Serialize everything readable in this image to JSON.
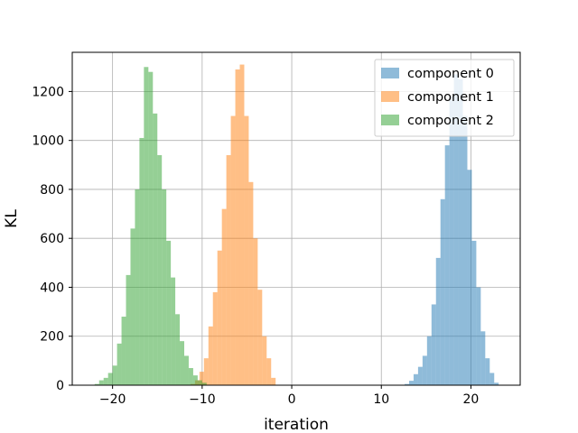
{
  "chart_data": {
    "type": "bar",
    "title": "",
    "xlabel": "iteration",
    "ylabel": "KL",
    "xlim": [
      -24.5,
      25.5
    ],
    "ylim": [
      0,
      1360
    ],
    "xticks": [
      -20,
      -10,
      0,
      10,
      20
    ],
    "xtick_labels": [
      "−20",
      "−10",
      "0",
      "10",
      "20"
    ],
    "yticks": [
      0,
      200,
      400,
      600,
      800,
      1000,
      1200
    ],
    "ytick_labels": [
      "0",
      "200",
      "400",
      "600",
      "800",
      "1000",
      "1200"
    ],
    "grid": true,
    "legend_position": "top-right",
    "series": [
      {
        "name": "component 0",
        "color": "#1f77b4",
        "bin_edges": [
          12.6,
          13.1,
          13.6,
          14.1,
          14.6,
          15.1,
          15.6,
          16.1,
          16.6,
          17.1,
          17.6,
          18.1,
          18.6,
          19.1,
          19.6,
          20.1,
          20.6,
          21.1,
          21.6,
          22.1,
          22.6,
          23.1
        ],
        "counts": [
          5,
          18,
          45,
          75,
          120,
          200,
          330,
          520,
          760,
          980,
          1180,
          1270,
          1250,
          1100,
          880,
          590,
          400,
          220,
          110,
          50,
          10
        ]
      },
      {
        "name": "component 1",
        "color": "#ff7f0e",
        "bin_edges": [
          -11.3,
          -10.8,
          -10.3,
          -9.8,
          -9.3,
          -8.8,
          -8.3,
          -7.8,
          -7.3,
          -6.8,
          -6.3,
          -5.8,
          -5.3,
          -4.8,
          -4.3,
          -3.8,
          -3.3,
          -2.8,
          -2.3,
          -1.8
        ],
        "counts": [
          5,
          20,
          55,
          110,
          240,
          380,
          550,
          720,
          940,
          1100,
          1290,
          1310,
          1100,
          830,
          600,
          390,
          200,
          110,
          30
        ]
      },
      {
        "name": "component 2",
        "color": "#2ca02c",
        "bin_edges": [
          -22.0,
          -21.5,
          -21.0,
          -20.5,
          -20.0,
          -19.5,
          -19.0,
          -18.5,
          -18.0,
          -17.5,
          -17.0,
          -16.5,
          -16.0,
          -15.5,
          -15.0,
          -14.5,
          -14.0,
          -13.5,
          -13.0,
          -12.5,
          -12.0,
          -11.5,
          -11.0,
          -10.5,
          -10.0,
          -9.5
        ],
        "counts": [
          5,
          20,
          30,
          50,
          80,
          170,
          280,
          450,
          640,
          800,
          1010,
          1300,
          1280,
          1110,
          940,
          800,
          590,
          440,
          290,
          180,
          120,
          70,
          40,
          20,
          10
        ]
      }
    ]
  }
}
